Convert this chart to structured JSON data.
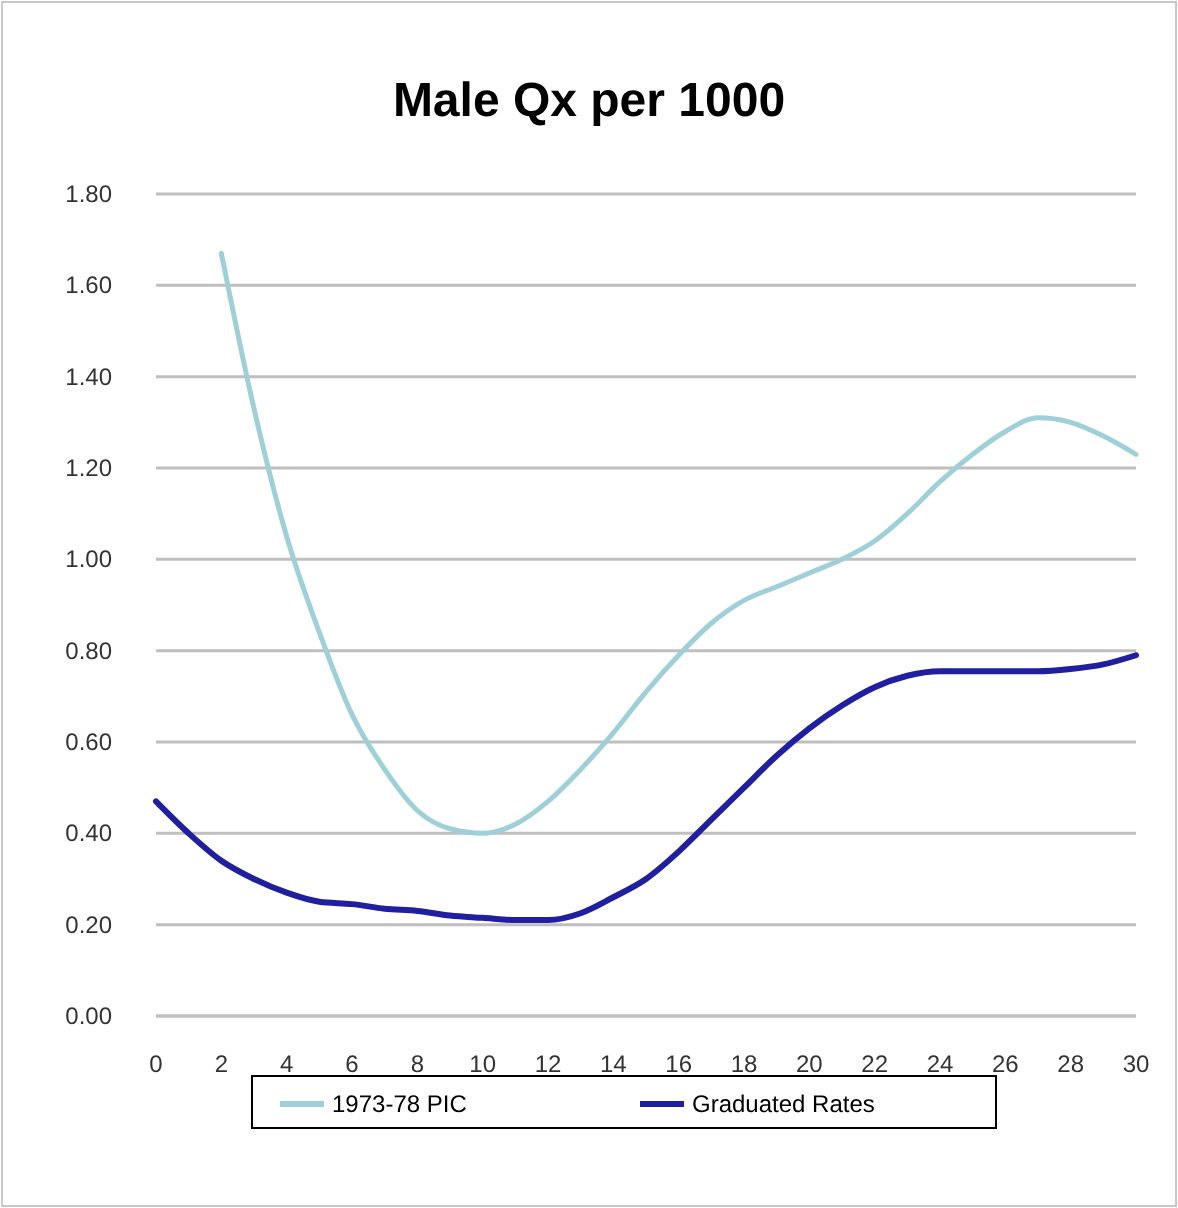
{
  "chart_data": {
    "type": "line",
    "title": "Male Qx per 1000",
    "x": [
      0,
      1,
      2,
      3,
      4,
      5,
      6,
      7,
      8,
      9,
      10,
      11,
      12,
      13,
      14,
      15,
      16,
      17,
      18,
      19,
      20,
      21,
      22,
      23,
      24,
      25,
      26,
      27,
      28,
      29,
      30
    ],
    "series": [
      {
        "name": "1973-78 PIC",
        "color": "#9fd0d8",
        "values": [
          null,
          null,
          1.67,
          1.33,
          1.05,
          0.84,
          0.66,
          0.54,
          0.45,
          0.41,
          0.4,
          0.42,
          0.47,
          0.54,
          0.62,
          0.71,
          0.79,
          0.86,
          0.91,
          0.94,
          0.97,
          1.0,
          1.04,
          1.1,
          1.17,
          1.23,
          1.28,
          1.31,
          1.3,
          1.27,
          1.23
        ]
      },
      {
        "name": "Graduated Rates",
        "color": "#1f1fa0",
        "values": [
          0.47,
          0.4,
          0.34,
          0.3,
          0.27,
          0.25,
          0.245,
          0.235,
          0.23,
          0.22,
          0.215,
          0.21,
          0.21,
          0.225,
          0.26,
          0.3,
          0.36,
          0.43,
          0.5,
          0.57,
          0.63,
          0.68,
          0.72,
          0.745,
          0.755,
          0.755,
          0.755,
          0.755,
          0.76,
          0.77,
          0.79
        ]
      }
    ],
    "xlim": [
      0,
      30
    ],
    "xticks": [
      0,
      2,
      4,
      6,
      8,
      10,
      12,
      14,
      16,
      18,
      20,
      22,
      24,
      26,
      28,
      30
    ],
    "ylim": [
      0,
      1.8
    ],
    "yticks": [
      {
        "value": 0,
        "label": "0.00"
      },
      {
        "value": 0.2,
        "label": "0.20"
      },
      {
        "value": 0.4,
        "label": "0.40"
      },
      {
        "value": 0.6,
        "label": "0.60"
      },
      {
        "value": 0.8,
        "label": "0.80"
      },
      {
        "value": 1.0,
        "label": "1.00"
      },
      {
        "value": 1.2,
        "label": "1.20"
      },
      {
        "value": 1.4,
        "label": "1.40"
      },
      {
        "value": 1.6,
        "label": "1.60"
      },
      {
        "value": 1.8,
        "label": "1.80"
      }
    ],
    "grid": "y",
    "legend": "bottom",
    "marker": "none",
    "line_style": "solid"
  }
}
